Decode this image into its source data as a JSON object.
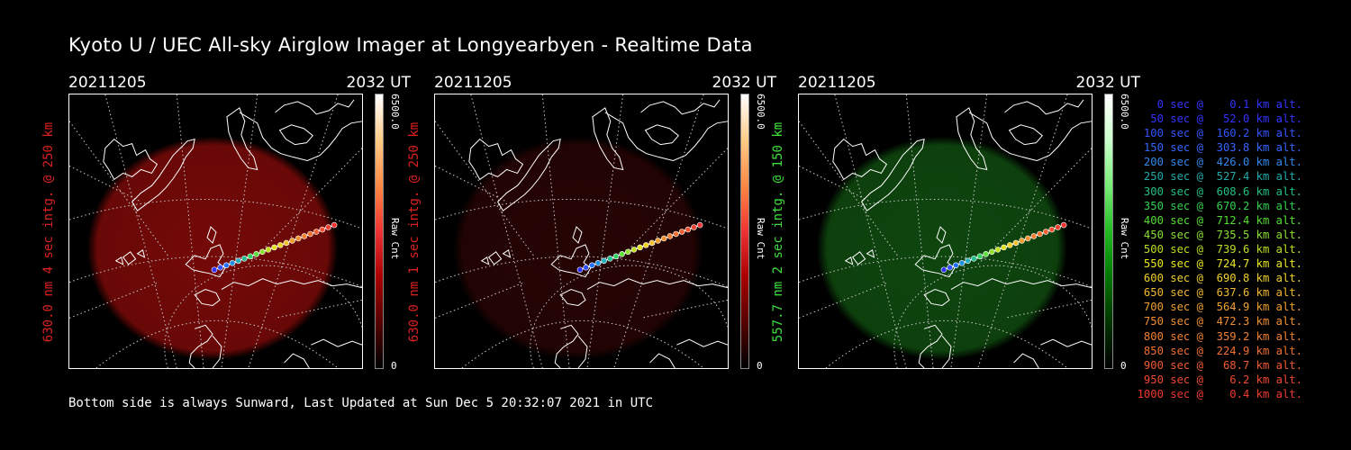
{
  "header": {
    "title": "Kyoto U / UEC All-sky Airglow Imager at Longyearbyen - Realtime Data"
  },
  "panels": [
    {
      "date": "20211205",
      "time": "2032 UT",
      "label": "630.0 nm 4 sec intg. @ 250 km",
      "label_color": "#dd2020",
      "glow_color": "#7a0a08",
      "glow_opacity": 0.95,
      "cbar_gradient": "linear-gradient(to top,#000,#500,#a00,#e33,#f84,#fc8,#fff)",
      "cbar_max": "6500.0",
      "cbar_min": "0",
      "cbar_unit": "Raw Cnt"
    },
    {
      "date": "20211205",
      "time": "2032 UT",
      "label": "630.0 nm 1 sec intg. @ 250 km",
      "label_color": "#dd2020",
      "glow_color": "#2a0404",
      "glow_opacity": 0.9,
      "cbar_gradient": "linear-gradient(to top,#000,#500,#a00,#e33,#f84,#fc8,#fff)",
      "cbar_max": "6500.0",
      "cbar_min": "0",
      "cbar_unit": "Raw Cnt"
    },
    {
      "date": "20211205",
      "time": "2032 UT",
      "label": "557.7 nm 2 sec intg. @ 150 km",
      "label_color": "#3ee03e",
      "glow_color": "#0f4a0f",
      "glow_opacity": 0.95,
      "cbar_gradient": "linear-gradient(to top,#000,#030,#070,#2b2,#7e7,#cfc,#fff)",
      "cbar_max": "6500.0",
      "cbar_min": "0",
      "cbar_unit": "Raw Cnt"
    }
  ],
  "trajectory_colors": [
    "#3030ff",
    "#3050ff",
    "#2070ff",
    "#2090e0",
    "#20b0c0",
    "#20c090",
    "#30d060",
    "#60e040",
    "#90e030",
    "#c0e020",
    "#e0e020",
    "#f0d020",
    "#f0c030",
    "#f0a030",
    "#f09030",
    "#f08030",
    "#f07030",
    "#f06030",
    "#f05030",
    "#f04030",
    "#f03030"
  ],
  "legend": [
    {
      "text": "   0 sec @    0.1 km alt.",
      "color": "#3333ff"
    },
    {
      "text": "  50 sec @   52.0 km alt.",
      "color": "#3333ff"
    },
    {
      "text": " 100 sec @  160.2 km alt.",
      "color": "#3355ff"
    },
    {
      "text": " 150 sec @  303.8 km alt.",
      "color": "#3366ff"
    },
    {
      "text": " 200 sec @  426.0 km alt.",
      "color": "#3388ee"
    },
    {
      "text": " 250 sec @  527.4 km alt.",
      "color": "#22aaaa"
    },
    {
      "text": " 300 sec @  608.6 km alt.",
      "color": "#22c080"
    },
    {
      "text": " 350 sec @  670.2 km alt.",
      "color": "#33d050"
    },
    {
      "text": " 400 sec @  712.4 km alt.",
      "color": "#55dd33"
    },
    {
      "text": " 450 sec @  735.5 km alt.",
      "color": "#88e033"
    },
    {
      "text": " 500 sec @  739.6 km alt.",
      "color": "#bbe022"
    },
    {
      "text": " 550 sec @  724.7 km alt.",
      "color": "#e8e822"
    },
    {
      "text": " 600 sec @  690.8 km alt.",
      "color": "#f0d030"
    },
    {
      "text": " 650 sec @  637.6 km alt.",
      "color": "#f0b830"
    },
    {
      "text": " 700 sec @  564.9 km alt.",
      "color": "#f0a030"
    },
    {
      "text": " 750 sec @  472.3 km alt.",
      "color": "#f09030"
    },
    {
      "text": " 800 sec @  359.2 km alt.",
      "color": "#f08030"
    },
    {
      "text": " 850 sec @  224.9 km alt.",
      "color": "#f07030"
    },
    {
      "text": " 900 sec @   68.7 km alt.",
      "color": "#f05a30"
    },
    {
      "text": " 950 sec @    6.2 km alt.",
      "color": "#f04a30"
    },
    {
      "text": "1000 sec @    0.4 km alt.",
      "color": "#f03a30"
    }
  ],
  "footer": {
    "text": "Bottom side is always Sunward, Last Updated at Sun Dec  5 20:32:07 2021 in UTC"
  }
}
